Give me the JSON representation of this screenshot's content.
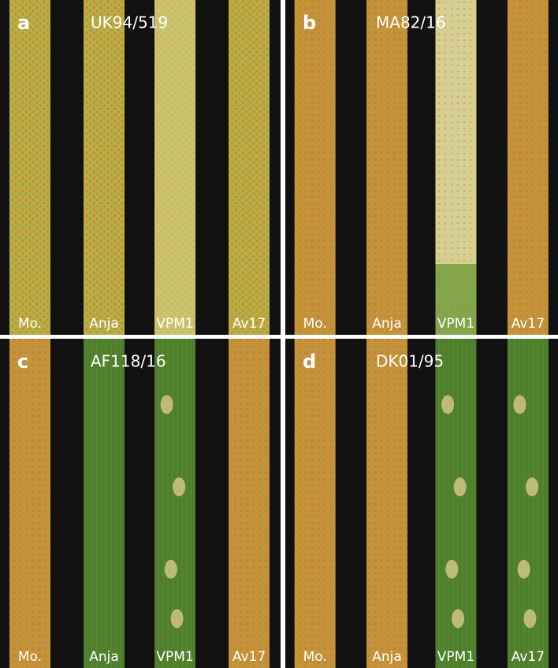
{
  "panels": [
    {
      "letter": "a",
      "isolate": "UK94/519",
      "leaves": [
        "Mo.",
        "Anja",
        "VPM1",
        "Av17"
      ]
    },
    {
      "letter": "b",
      "isolate": "MA82/16",
      "leaves": [
        "Mo.",
        "Anja",
        "VPM1",
        "Av17"
      ]
    },
    {
      "letter": "c",
      "isolate": "AF118/16",
      "leaves": [
        "Mo.",
        "Anja",
        "VPM1",
        "Av17"
      ]
    },
    {
      "letter": "d",
      "isolate": "DK01/95",
      "leaves": [
        "Mo.",
        "Anja",
        "VPM1",
        "Av17"
      ]
    }
  ]
}
